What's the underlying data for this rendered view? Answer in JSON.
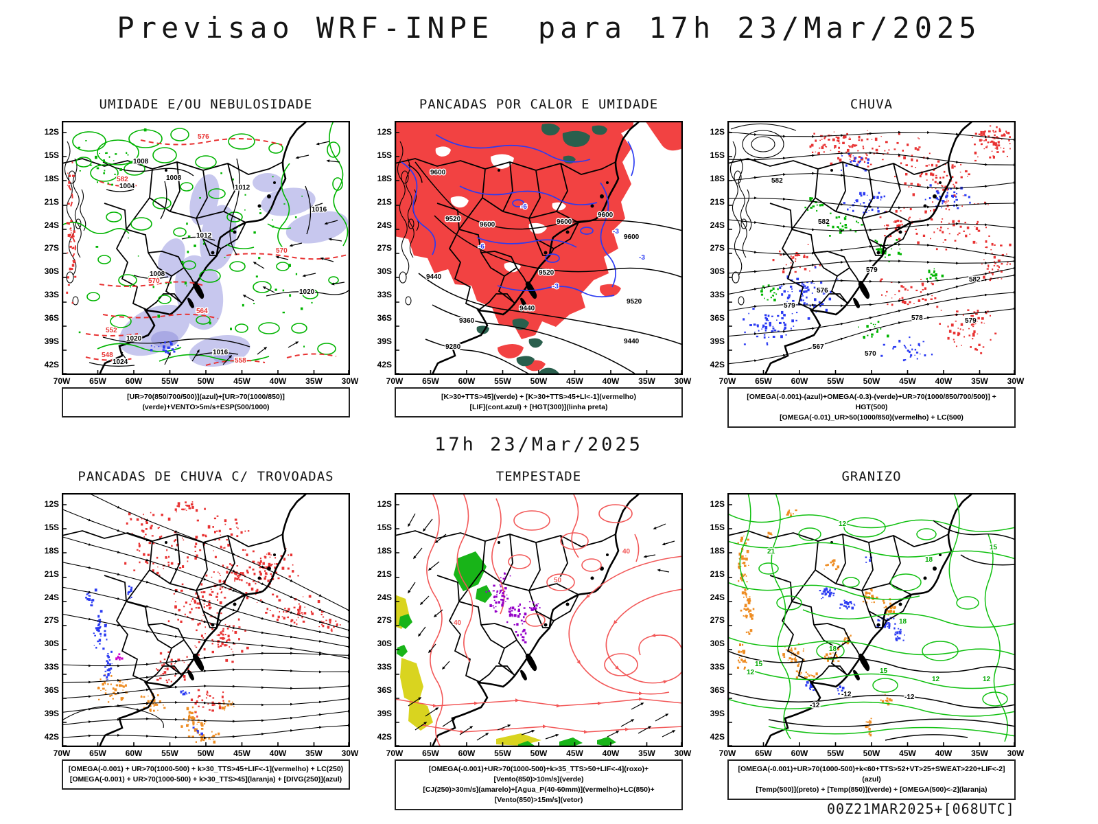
{
  "page": {
    "title": "Previsao WRF-INPE  para 17h 23/Mar/2025",
    "subtitle": "17h 23/Mar/2025",
    "footer": "00Z21MAR2025+[068UTC]"
  },
  "axes": {
    "lat": [
      "12S",
      "15S",
      "18S",
      "21S",
      "24S",
      "27S",
      "30S",
      "33S",
      "36S",
      "39S",
      "42S"
    ],
    "lon": [
      "70W",
      "65W",
      "60W",
      "55W",
      "50W",
      "45W",
      "40W",
      "35W",
      "30W"
    ]
  },
  "colors": {
    "verde": "#00b400",
    "verde_claro": "#18b418",
    "vermelho": "#e83232",
    "vermelho_fill": "#f24242",
    "azul": "#2b3bf2",
    "verde_escuro": "#2a5f4d",
    "lavanda": "#c7c7ee",
    "laranja": "#ee8c22",
    "amarelo": "#d9d41f",
    "roxo": "#9400c8",
    "magenta": "#cc00cc",
    "salmao": "#f25858",
    "preto": "#000000"
  },
  "panels": [
    {
      "id": "umidade-nebulosidade",
      "title": "UMIDADE E/OU NEBULOSIDADE",
      "caption": [
        "[UR>70(850/700/500)](azul)+[UR>70(1000/850)](verde)+VENTO>5m/s+ESP(500/1000)"
      ],
      "labels": [
        {
          "t": "1008",
          "c": "preto"
        },
        {
          "t": "1004",
          "c": "preto"
        },
        {
          "t": "1008",
          "c": "preto"
        },
        {
          "t": "1012",
          "c": "preto"
        },
        {
          "t": "1016",
          "c": "preto"
        },
        {
          "t": "1012",
          "c": "preto"
        },
        {
          "t": "1008",
          "c": "preto"
        },
        {
          "t": "1020",
          "c": "preto"
        },
        {
          "t": "1020",
          "c": "preto"
        },
        {
          "t": "1016",
          "c": "preto"
        },
        {
          "t": "1024",
          "c": "preto"
        },
        {
          "t": "576",
          "c": "vermelho"
        },
        {
          "t": "582",
          "c": "vermelho"
        },
        {
          "t": "570",
          "c": "vermelho"
        },
        {
          "t": "570",
          "c": "vermelho"
        },
        {
          "t": "564",
          "c": "vermelho"
        },
        {
          "t": "552",
          "c": "vermelho"
        },
        {
          "t": "548",
          "c": "vermelho"
        },
        {
          "t": "558",
          "c": "vermelho"
        }
      ]
    },
    {
      "id": "pancadas-calor-umidade",
      "title": "PANCADAS POR CALOR E UMIDADE",
      "caption": [
        "[K>30+TTS>45](verde) + [K>30+TTS>45+LI<-1](vermelho)",
        "[LIF](cont.azul) + [HGT(300)](linha preta)"
      ],
      "labels": [
        {
          "t": "9600",
          "c": "preto"
        },
        {
          "t": "9520",
          "c": "preto"
        },
        {
          "t": "9600",
          "c": "preto"
        },
        {
          "t": "9600",
          "c": "preto"
        },
        {
          "t": "9600",
          "c": "preto"
        },
        {
          "t": "9600",
          "c": "preto"
        },
        {
          "t": "9440",
          "c": "preto"
        },
        {
          "t": "9520",
          "c": "preto"
        },
        {
          "t": "9520",
          "c": "preto"
        },
        {
          "t": "9440",
          "c": "preto"
        },
        {
          "t": "9360",
          "c": "preto"
        },
        {
          "t": "9440",
          "c": "preto"
        },
        {
          "t": "9280",
          "c": "preto"
        },
        {
          "t": "-3",
          "c": "azul"
        },
        {
          "t": "-6",
          "c": "azul"
        },
        {
          "t": "-6",
          "c": "azul"
        },
        {
          "t": "-3",
          "c": "azul"
        },
        {
          "t": "-3",
          "c": "azul"
        }
      ]
    },
    {
      "id": "chuva",
      "title": "CHUVA",
      "caption": [
        "[OMEGA(-0.001)-(azul)+OMEGA(-0.3)-(verde)+UR>70(1000/850/700/500)] + HGT(500)",
        "[OMEGA(-0.01)_UR>50(1000/850)(vermelho) + LC(500)"
      ],
      "labels": [
        {
          "t": "582",
          "c": "preto"
        },
        {
          "t": "582",
          "c": "preto"
        },
        {
          "t": "579",
          "c": "preto"
        },
        {
          "t": "576",
          "c": "preto"
        },
        {
          "t": "579",
          "c": "preto"
        },
        {
          "t": "582",
          "c": "preto"
        },
        {
          "t": "579",
          "c": "preto"
        },
        {
          "t": "578",
          "c": "preto"
        },
        {
          "t": "567",
          "c": "preto"
        },
        {
          "t": "570",
          "c": "preto"
        }
      ]
    },
    {
      "id": "pancadas-chuva-trovoadas",
      "title": "PANCADAS DE CHUVA C/ TROVOADAS",
      "caption": [
        "[OMEGA(-0.001) + UR>70(1000-500) + k>30_TTS>45+LIF<-1](vermelho) + LC(250)",
        "[OMEGA(-0.001) + UR>70(1000-500) + k>30_TTS>45](laranja) + [DIVG(250)](azul)"
      ],
      "labels": []
    },
    {
      "id": "tempestade",
      "title": "TEMPESTADE",
      "caption": [
        "[OMEGA(-0.001)+UR>70(1000-500)+k>35_TTS>50+LIF<-4](roxo)+[Vento(850)>10m/s](verde)",
        "[CJ(250)>30m/s](amarelo)+[Agua_P(40-60mm)](vermelho)+LC(850)+[Vento(850)>15m/s](vetor)"
      ],
      "labels": [
        {
          "t": "40",
          "c": "salmao"
        },
        {
          "t": "50",
          "c": "salmao"
        },
        {
          "t": "40",
          "c": "salmao"
        }
      ]
    },
    {
      "id": "granizo",
      "title": "GRANIZO",
      "caption": [
        "[OMEGA(-0.001)+UR>70(1000-500)+k<60+TTS>52+VT>25+SWEAT>220+LIF<-2](azul)",
        "[Temp(500)](preto) + [Temp(850)](verde) + [OMEGA(500)<-2](laranja)"
      ],
      "labels": [
        {
          "t": "12",
          "c": "verde"
        },
        {
          "t": "21",
          "c": "verde"
        },
        {
          "t": "18",
          "c": "verde"
        },
        {
          "t": "15",
          "c": "verde"
        },
        {
          "t": "18",
          "c": "verde"
        },
        {
          "t": "15",
          "c": "verde"
        },
        {
          "t": "12",
          "c": "verde"
        },
        {
          "t": "12",
          "c": "verde"
        },
        {
          "t": "15",
          "c": "verde"
        },
        {
          "t": "12",
          "c": "verde"
        },
        {
          "t": "18",
          "c": "verde"
        },
        {
          "t": "-12",
          "c": "preto"
        },
        {
          "t": "-12",
          "c": "preto"
        },
        {
          "t": "-12",
          "c": "preto"
        }
      ]
    }
  ]
}
